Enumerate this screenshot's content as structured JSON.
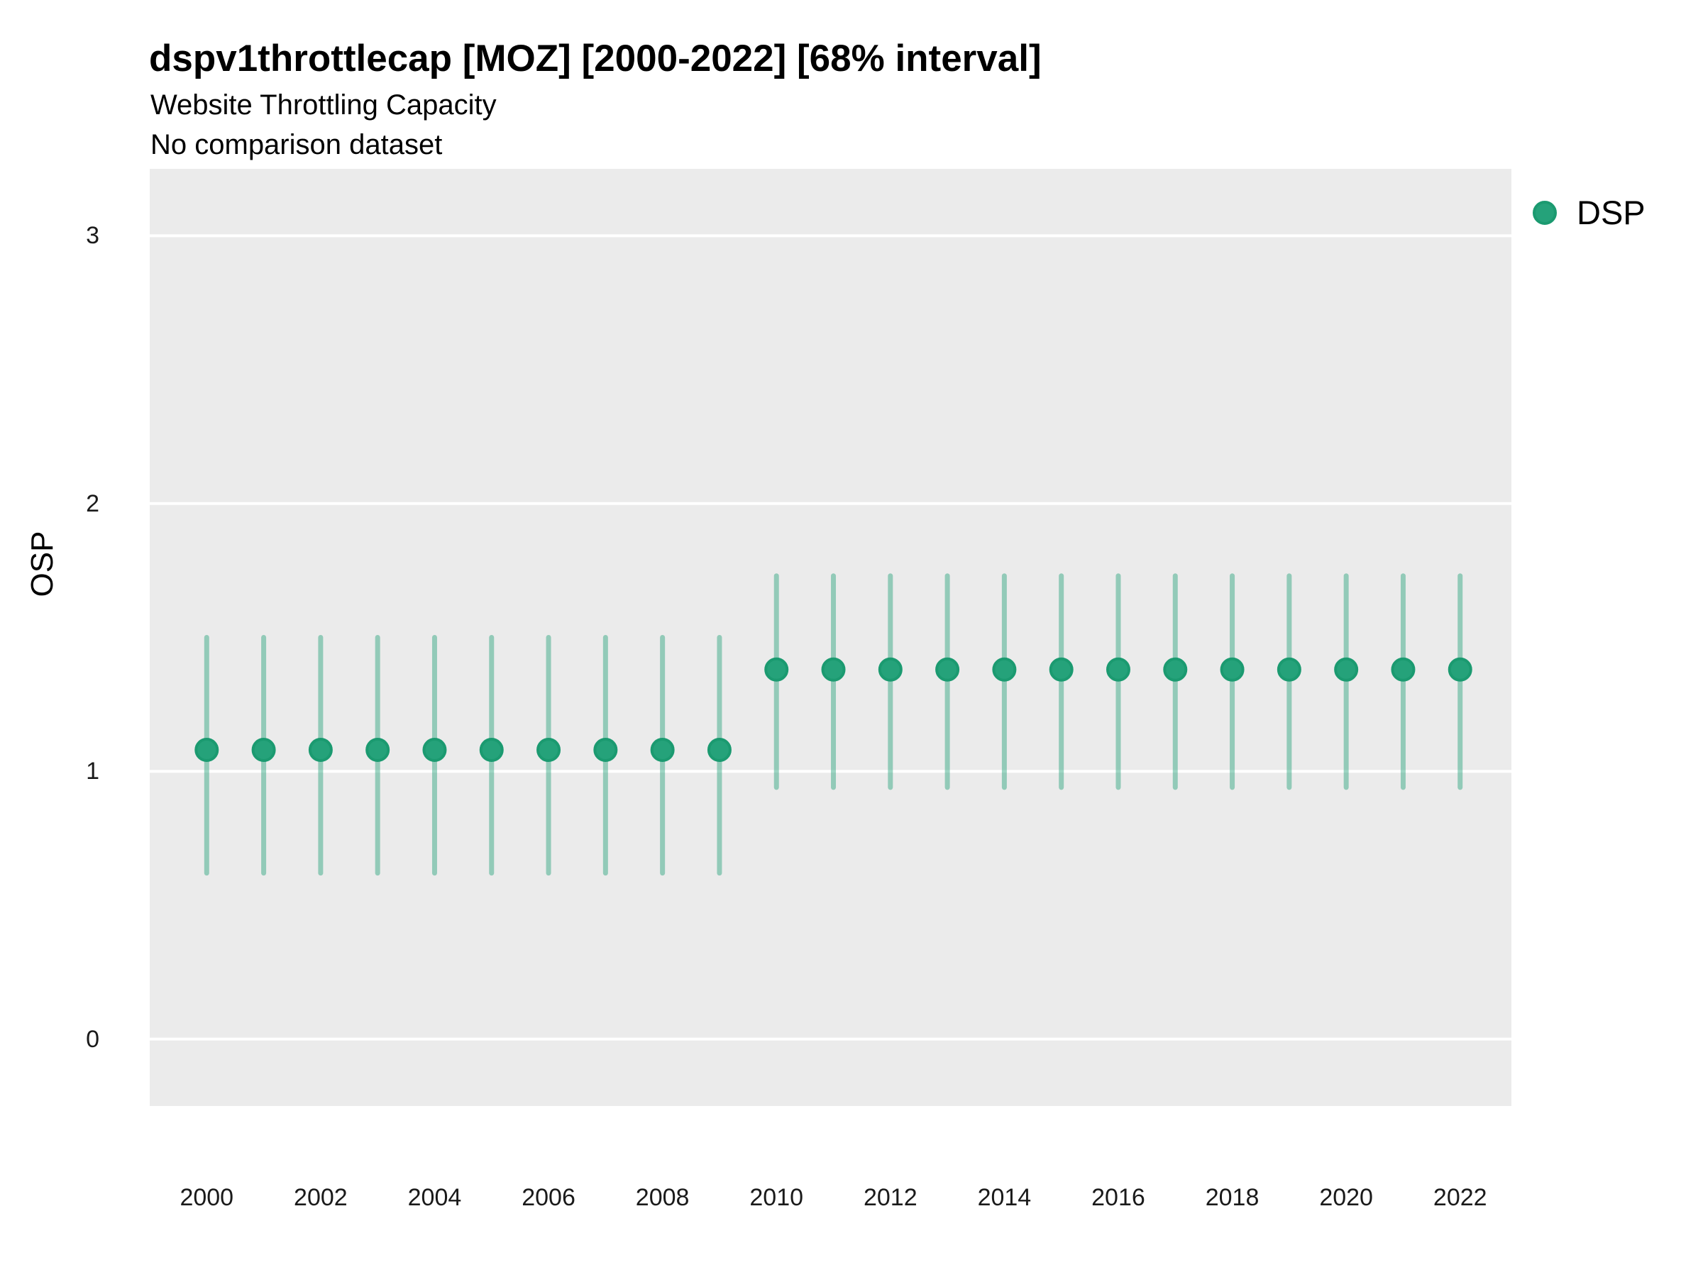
{
  "title": "dspv1throttlecap [MOZ] [2000-2022] [68% interval]",
  "subtitle": "Website Throttling Capacity",
  "note": "No comparison dataset",
  "legend": {
    "label": "DSP",
    "marker": "dot-icon"
  },
  "colors": {
    "point_fill": "#25A27A",
    "point_stroke": "#1B9A70",
    "interval_line": "rgba(37,162,122,0.45)",
    "panel_bg": "#EBEBEB",
    "gridline": "#FFFFFF",
    "text": "#000000",
    "tick_text": "#1A1A1A"
  },
  "chart_data": {
    "type": "scatter",
    "title": "dspv1throttlecap [MOZ] [2000-2022] [68% interval]",
    "subtitle": "Website Throttling Capacity",
    "note": "No comparison dataset",
    "xlabel": "",
    "ylabel": "OSP",
    "interval": "68%",
    "legend_position": "top-right",
    "grid": "major-horizontal-white-on-gray",
    "xlim": [
      1999.0,
      2022.9
    ],
    "ylim": [
      -0.25,
      3.25
    ],
    "y_ticks": [
      0,
      1,
      2,
      3
    ],
    "x_ticks": [
      2000,
      2002,
      2004,
      2006,
      2008,
      2010,
      2012,
      2014,
      2016,
      2018,
      2020,
      2022
    ],
    "series": [
      {
        "name": "DSP",
        "points": [
          {
            "year": 2000,
            "lo": 0.62,
            "mid": 1.08,
            "hi": 1.5
          },
          {
            "year": 2001,
            "lo": 0.62,
            "mid": 1.08,
            "hi": 1.5
          },
          {
            "year": 2002,
            "lo": 0.62,
            "mid": 1.08,
            "hi": 1.5
          },
          {
            "year": 2003,
            "lo": 0.62,
            "mid": 1.08,
            "hi": 1.5
          },
          {
            "year": 2004,
            "lo": 0.62,
            "mid": 1.08,
            "hi": 1.5
          },
          {
            "year": 2005,
            "lo": 0.62,
            "mid": 1.08,
            "hi": 1.5
          },
          {
            "year": 2006,
            "lo": 0.62,
            "mid": 1.08,
            "hi": 1.5
          },
          {
            "year": 2007,
            "lo": 0.62,
            "mid": 1.08,
            "hi": 1.5
          },
          {
            "year": 2008,
            "lo": 0.62,
            "mid": 1.08,
            "hi": 1.5
          },
          {
            "year": 2009,
            "lo": 0.62,
            "mid": 1.08,
            "hi": 1.5
          },
          {
            "year": 2010,
            "lo": 0.94,
            "mid": 1.38,
            "hi": 1.73
          },
          {
            "year": 2011,
            "lo": 0.94,
            "mid": 1.38,
            "hi": 1.73
          },
          {
            "year": 2012,
            "lo": 0.94,
            "mid": 1.38,
            "hi": 1.73
          },
          {
            "year": 2013,
            "lo": 0.94,
            "mid": 1.38,
            "hi": 1.73
          },
          {
            "year": 2014,
            "lo": 0.94,
            "mid": 1.38,
            "hi": 1.73
          },
          {
            "year": 2015,
            "lo": 0.94,
            "mid": 1.38,
            "hi": 1.73
          },
          {
            "year": 2016,
            "lo": 0.94,
            "mid": 1.38,
            "hi": 1.73
          },
          {
            "year": 2017,
            "lo": 0.94,
            "mid": 1.38,
            "hi": 1.73
          },
          {
            "year": 2018,
            "lo": 0.94,
            "mid": 1.38,
            "hi": 1.73
          },
          {
            "year": 2019,
            "lo": 0.94,
            "mid": 1.38,
            "hi": 1.73
          },
          {
            "year": 2020,
            "lo": 0.94,
            "mid": 1.38,
            "hi": 1.73
          },
          {
            "year": 2021,
            "lo": 0.94,
            "mid": 1.38,
            "hi": 1.73
          },
          {
            "year": 2022,
            "lo": 0.94,
            "mid": 1.38,
            "hi": 1.73
          }
        ]
      }
    ]
  }
}
